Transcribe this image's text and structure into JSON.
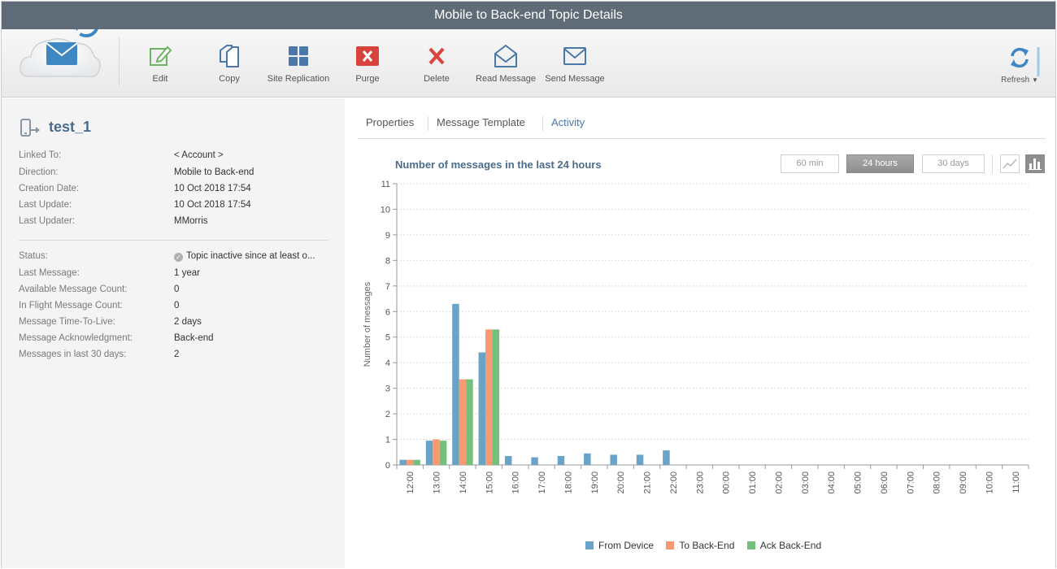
{
  "window": {
    "title": "Mobile to Back-end Topic Details"
  },
  "toolbar": {
    "items": [
      {
        "label": "Edit",
        "icon": "edit-icon"
      },
      {
        "label": "Copy",
        "icon": "copy-icon"
      },
      {
        "label": "Site Replication",
        "icon": "site-replication-icon"
      },
      {
        "label": "Purge",
        "icon": "purge-icon"
      },
      {
        "label": "Delete",
        "icon": "delete-icon"
      },
      {
        "label": "Read Message",
        "icon": "read-message-icon"
      },
      {
        "label": "Send Message",
        "icon": "send-message-icon"
      }
    ],
    "refresh_label": "Refresh"
  },
  "topic": {
    "name": "test_1",
    "properties": [
      {
        "key": "Linked To:",
        "value": "< Account >"
      },
      {
        "key": "Direction:",
        "value": "Mobile to Back-end"
      },
      {
        "key": "Creation Date:",
        "value": "10 Oct 2018 17:54"
      },
      {
        "key": "Last Update:",
        "value": "10 Oct 2018 17:54"
      },
      {
        "key": "Last Updater:",
        "value": "MMorris"
      }
    ],
    "status_properties": [
      {
        "key": "Status:",
        "value": "Topic inactive since at least o..."
      },
      {
        "key": "Last Message:",
        "value": "1 year"
      },
      {
        "key": "Available Message Count:",
        "value": "0"
      },
      {
        "key": "In Flight Message Count:",
        "value": "0"
      },
      {
        "key": "Message Time-To-Live:",
        "value": "2 days"
      },
      {
        "key": "Message Acknowledgment:",
        "value": "Back-end"
      },
      {
        "key": "Messages in last 30 days:",
        "value": "2"
      }
    ]
  },
  "tabs": [
    {
      "label": "Properties",
      "active": false
    },
    {
      "label": "Message Template",
      "active": false
    },
    {
      "label": "Activity",
      "active": true
    }
  ],
  "activity": {
    "ranges": [
      {
        "label": "60 min",
        "active": false
      },
      {
        "label": "24 hours",
        "active": true
      },
      {
        "label": "30 days",
        "active": false
      }
    ],
    "chart_types": [
      {
        "icon": "line-chart-icon",
        "active": false
      },
      {
        "icon": "bar-chart-icon",
        "active": true
      }
    ]
  },
  "colors": {
    "accent": "#4a6c8c",
    "from_device": "#6aa3c8",
    "to_backend": "#f79a72",
    "ack_backend": "#72c07a"
  },
  "chart_data": {
    "type": "bar",
    "title": "Number of messages in the last 24 hours",
    "xlabel": "",
    "ylabel": "Number of messages",
    "ylim": [
      0,
      11
    ],
    "yticks": [
      0,
      1,
      2,
      3,
      4,
      5,
      6,
      7,
      8,
      9,
      10,
      11
    ],
    "grid": true,
    "legend_position": "bottom",
    "categories": [
      "12:00",
      "13:00",
      "14:00",
      "15:00",
      "16:00",
      "17:00",
      "18:00",
      "19:00",
      "20:00",
      "21:00",
      "22:00",
      "23:00",
      "00:00",
      "01:00",
      "02:00",
      "03:00",
      "04:00",
      "05:00",
      "06:00",
      "07:00",
      "08:00",
      "09:00",
      "10:00",
      "11:00"
    ],
    "series": [
      {
        "name": "From Device",
        "color": "#6aa3c8",
        "values": [
          0.2,
          0.95,
          6.3,
          4.4,
          0.35,
          0.3,
          0.35,
          0.45,
          0.4,
          0.4,
          0.57,
          0,
          0,
          0,
          0,
          0,
          0,
          0,
          0,
          0,
          0,
          0,
          0,
          0
        ]
      },
      {
        "name": "To Back-End",
        "color": "#f79a72",
        "values": [
          0.2,
          1.0,
          3.35,
          5.3,
          0,
          0,
          0,
          0,
          0,
          0,
          0,
          0,
          0,
          0,
          0,
          0,
          0,
          0,
          0,
          0,
          0,
          0,
          0,
          0
        ]
      },
      {
        "name": "Ack Back-End",
        "color": "#72c07a",
        "values": [
          0.2,
          0.95,
          3.35,
          5.3,
          0,
          0,
          0,
          0,
          0,
          0,
          0,
          0,
          0,
          0,
          0,
          0,
          0,
          0,
          0,
          0,
          0,
          0,
          0,
          0
        ]
      }
    ]
  }
}
